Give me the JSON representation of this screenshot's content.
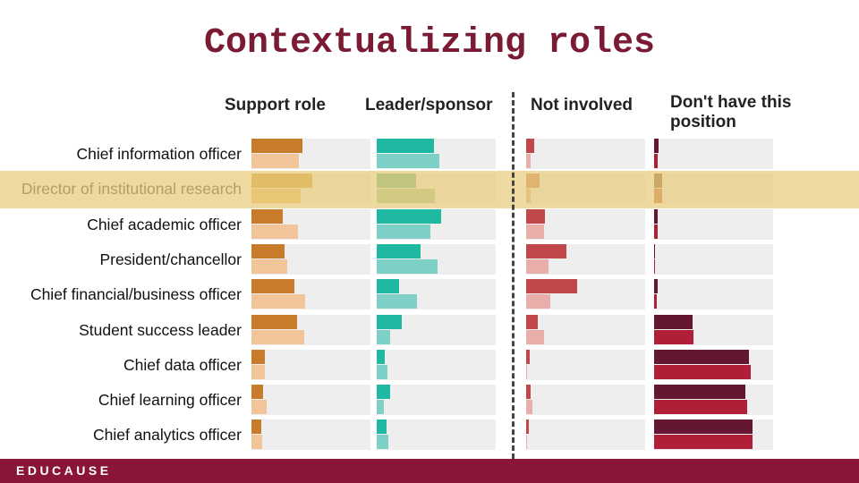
{
  "title": "Contextualizing roles",
  "footer": {
    "logo": "EDUCAUSE"
  },
  "chart_data": {
    "type": "bar",
    "title": "Contextualizing roles",
    "columns": [
      "Support role",
      "Leader/sponsor",
      "Not involved",
      "Don't have this position"
    ],
    "categories": [
      "Chief information officer",
      "Director of institutional research",
      "Chief academic officer",
      "President/chancellor",
      "Chief financial/business officer",
      "Student success leader",
      "Chief data officer",
      "Chief learning officer",
      "Chief analytics officer"
    ],
    "highlighted_category": "Director of institutional research",
    "xlim": [
      0,
      100
    ],
    "series": [
      {
        "column": "Support role",
        "values_dark": [
          43,
          51,
          26,
          28,
          36,
          38,
          11,
          10,
          8
        ],
        "values_light": [
          40,
          41,
          39,
          30,
          45,
          44,
          11,
          13,
          9
        ],
        "color_dark": "#c97b2c",
        "color_light": "#f2c49a",
        "color_dark_hl": "#c98a1e",
        "color_light_hl": "#e8b050"
      },
      {
        "column": "Leader/sponsor",
        "values_dark": [
          48,
          33,
          54,
          37,
          19,
          21,
          7,
          11,
          8
        ],
        "values_light": [
          53,
          49,
          45,
          51,
          34,
          11,
          9,
          6,
          10
        ],
        "color_dark": "#1fb8a0",
        "color_light": "#7ecfc6",
        "color_dark_hl": "#4aa87a",
        "color_light_hl": "#8fba85"
      },
      {
        "column": "Not involved",
        "values_dark": [
          7,
          11,
          16,
          34,
          43,
          10,
          3,
          4,
          2
        ],
        "values_light": [
          4,
          4,
          15,
          19,
          20,
          15,
          1,
          5,
          1
        ],
        "color_dark": "#c0474a",
        "color_light": "#e7aeaa",
        "color_dark_hl": "#c86a38",
        "color_light_hl": "#e0a270"
      },
      {
        "column": "Don't have this position",
        "values_dark": [
          4,
          7,
          3,
          1,
          3,
          32,
          80,
          77,
          83
        ],
        "values_light": [
          3,
          7,
          3,
          1,
          2,
          33,
          81,
          78,
          83
        ],
        "color_dark": "#651630",
        "color_light": "#b01e38",
        "color_dark_hl": "#7a3a1c",
        "color_light_hl": "#c04820"
      }
    ]
  }
}
